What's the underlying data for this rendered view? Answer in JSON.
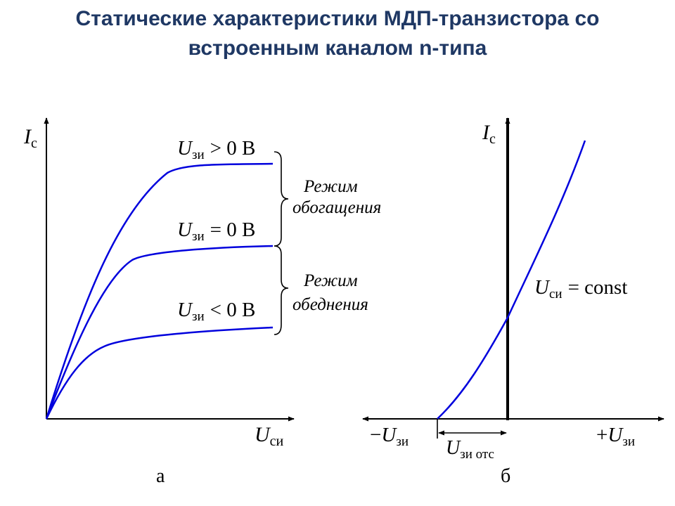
{
  "title": {
    "line1": "Статические характеристики МДП-транзистора со",
    "line2": "встроенным каналом n-типа"
  },
  "colors": {
    "title": "#1f3864",
    "curve": "#0000dd",
    "axis": "#000000"
  },
  "left_chart": {
    "y_axis_letter": "I",
    "y_axis_sub": "с",
    "x_axis_letter": "U",
    "x_axis_sub": "си",
    "curves": [
      {
        "u": "U",
        "sub": "зи",
        "rel": "> 0 В"
      },
      {
        "u": "U",
        "sub": "зи",
        "rel": "= 0 В"
      },
      {
        "u": "U",
        "sub": "зи",
        "rel": "< 0 В"
      }
    ],
    "mode_enrich_1": "Режим",
    "mode_enrich_2": "обогащения",
    "mode_deplete_1": "Режим",
    "mode_deplete_2": "обеднения",
    "caption": "а"
  },
  "right_chart": {
    "y_axis_letter": "I",
    "y_axis_sub": "с",
    "left_axis_sign": "−",
    "left_axis_letter": "U",
    "left_axis_sub": "зи",
    "right_axis_sign": "+",
    "right_axis_letter": "U",
    "right_axis_sub": "зи",
    "cutoff_letter": "U",
    "cutoff_sub": "зи отс",
    "const_letter": "U",
    "const_sub": "си",
    "const_text": "= const",
    "caption": "б"
  }
}
